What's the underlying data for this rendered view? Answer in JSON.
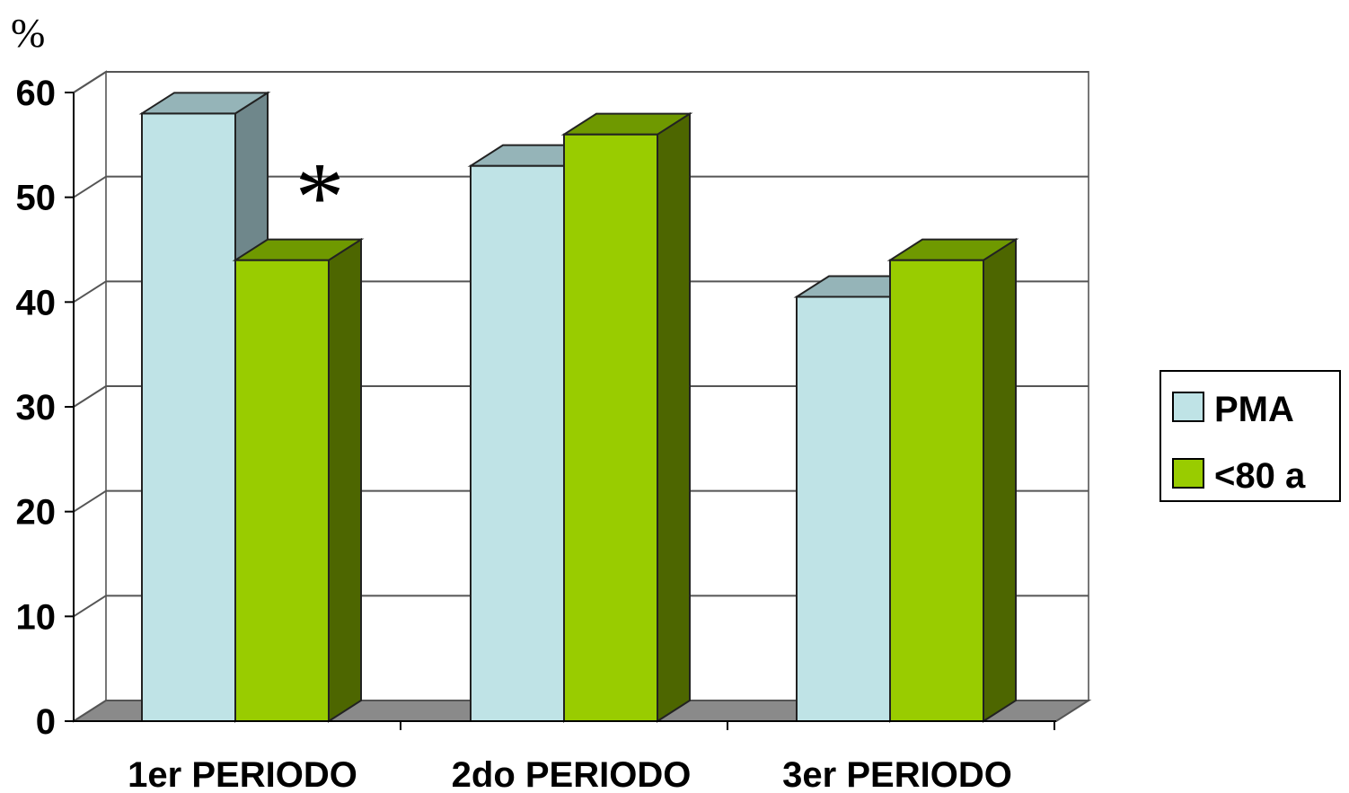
{
  "chart_data": {
    "type": "bar",
    "style": "3d-clustered-column",
    "ylabel": "%",
    "ylim": [
      0,
      60
    ],
    "yticks": [
      "0",
      "10",
      "20",
      "30",
      "40",
      "50",
      "60"
    ],
    "grid": true,
    "legend_position": "right",
    "categories": [
      "1er PERIODO",
      "2do PERIODO",
      "3er PERIODO"
    ],
    "series": [
      {
        "name": "PMA",
        "values": [
          58,
          53,
          40.5
        ],
        "color": "#bfe3e6",
        "side_color": "#6f878b",
        "top_color": "#95b4b8"
      },
      {
        "name": "<80 a",
        "values": [
          44,
          56,
          44
        ],
        "color": "#99cc00",
        "side_color": "#4d6600",
        "top_color": "#6f9900"
      }
    ],
    "annotations": [
      {
        "text": "*",
        "category": "1er PERIODO",
        "y": 52
      }
    ]
  }
}
